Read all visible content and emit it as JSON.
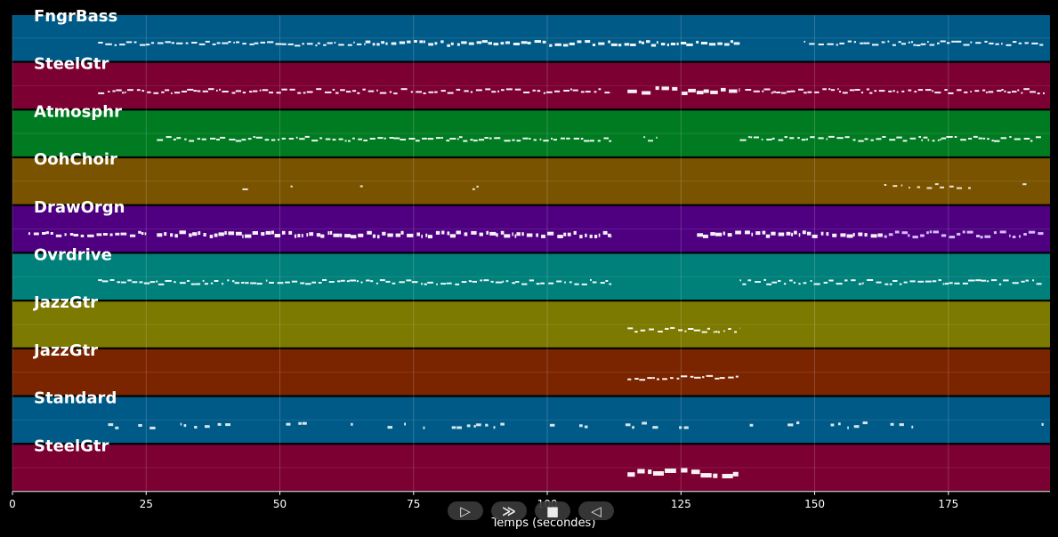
{
  "chart_data": {
    "type": "piano-roll",
    "xlabel": "Temps (secondes)",
    "xlim": [
      0,
      194
    ],
    "xticks": [
      0,
      25,
      50,
      75,
      100,
      125,
      150,
      175
    ],
    "grid": true,
    "tracks": [
      {
        "name": "FngrBass",
        "color": "#005a87",
        "segments": [
          [
            16,
            66,
            "dense",
            2
          ],
          [
            66,
            136,
            "dense",
            3
          ],
          [
            148,
            193,
            "dense",
            2
          ]
        ]
      },
      {
        "name": "SteelGtr",
        "color": "#7c0032",
        "segments": [
          [
            16,
            112,
            "dense",
            2
          ],
          [
            115,
            136,
            "heavy",
            4
          ],
          [
            137,
            193,
            "dense",
            2
          ]
        ]
      },
      {
        "name": "Atmosphr",
        "color": "#007b21",
        "segments": [
          [
            27,
            112,
            "dense",
            2
          ],
          [
            118,
            121,
            "sparse",
            2
          ],
          [
            136,
            193,
            "dense",
            2
          ]
        ]
      },
      {
        "name": "OohChoir",
        "color": "#7a5300",
        "segments": [
          [
            43,
            56,
            "sparse",
            2
          ],
          [
            65,
            72,
            "sparse",
            2
          ],
          [
            86,
            100,
            "sparse",
            2
          ],
          [
            109,
            111,
            "sparse",
            2
          ],
          [
            147,
            153,
            "sparse",
            2
          ],
          [
            163,
            193,
            "sparse",
            2
          ]
        ]
      },
      {
        "name": "DrawOrgn",
        "color": "#4e0080",
        "segments": [
          [
            3,
            25,
            "dense",
            3
          ],
          [
            27,
            112,
            "dense",
            4
          ],
          [
            128,
            163,
            "dense",
            4
          ],
          [
            163,
            193,
            "wave",
            3
          ]
        ]
      },
      {
        "name": "Ovrdrive",
        "color": "#00807a",
        "segments": [
          [
            16,
            112,
            "dense",
            2
          ],
          [
            136,
            193,
            "dense",
            2
          ]
        ]
      },
      {
        "name": "JazzGtr",
        "color": "#7c7a00",
        "segments": [
          [
            115,
            136,
            "dense",
            2
          ]
        ]
      },
      {
        "name": "JazzGtr",
        "color": "#7a2400",
        "segments": [
          [
            115,
            136,
            "dense",
            2
          ]
        ]
      },
      {
        "name": "Standard",
        "color": "#005a87",
        "segments": [
          [
            14,
            193,
            "sparse",
            3
          ]
        ]
      },
      {
        "name": "SteelGtr",
        "color": "#7c0032",
        "segments": [
          [
            115,
            136,
            "heavy",
            5
          ]
        ]
      }
    ]
  },
  "transport": {
    "play_label": "▷",
    "forward_label": "≫",
    "stop_label": "■",
    "rewind_label": "◁"
  }
}
